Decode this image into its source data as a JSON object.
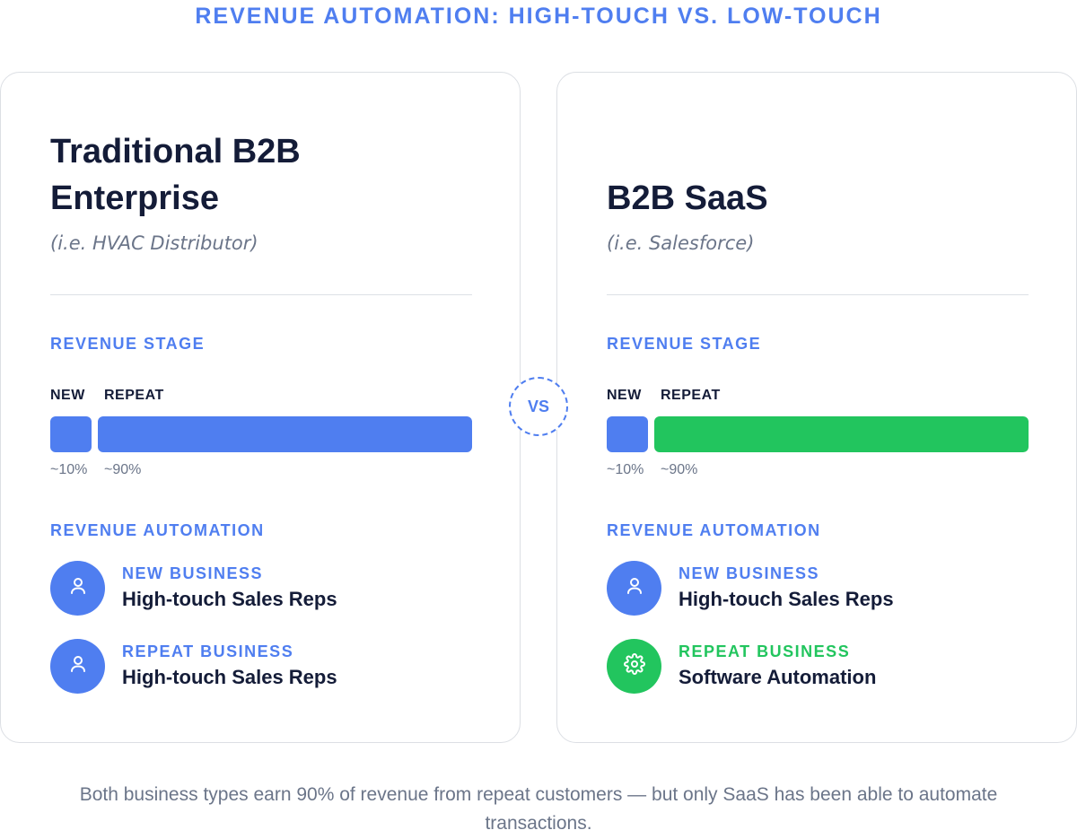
{
  "title": "REVENUE AUTOMATION: HIGH-TOUCH VS. LOW-TOUCH",
  "vs_label": "VS",
  "colors": {
    "accent_blue": "#4f7ef0",
    "accent_green": "#22c55e",
    "dark_text": "#141c38",
    "muted_text": "#6b7589"
  },
  "left": {
    "title": "Traditional B2B Enterprise",
    "subtitle": "(i.e. HVAC Distributor)",
    "stage_label": "REVENUE STAGE",
    "bar": {
      "new_label": "NEW",
      "repeat_label": "REPEAT",
      "new_pct": "~10%",
      "repeat_pct": "~90%",
      "new_color": "#4f7ef0",
      "repeat_color": "#4f7ef0"
    },
    "automation_label": "REVENUE AUTOMATION",
    "automation": [
      {
        "kicker": "NEW BUSINESS",
        "value": "High-touch Sales Reps",
        "icon": "person-icon",
        "color": "#4f7ef0"
      },
      {
        "kicker": "REPEAT BUSINESS",
        "value": "High-touch Sales Reps",
        "icon": "person-icon",
        "color": "#4f7ef0"
      }
    ]
  },
  "right": {
    "title": "B2B SaaS",
    "subtitle": "(i.e. Salesforce)",
    "stage_label": "REVENUE STAGE",
    "bar": {
      "new_label": "NEW",
      "repeat_label": "REPEAT",
      "new_pct": "~10%",
      "repeat_pct": "~90%",
      "new_color": "#4f7ef0",
      "repeat_color": "#22c55e"
    },
    "automation_label": "REVENUE AUTOMATION",
    "automation": [
      {
        "kicker": "NEW BUSINESS",
        "value": "High-touch Sales Reps",
        "icon": "person-icon",
        "color": "#4f7ef0"
      },
      {
        "kicker": "REPEAT BUSINESS",
        "value": "Software Automation",
        "icon": "gear-icon",
        "color": "#22c55e"
      }
    ]
  },
  "caption": "Both business types earn 90% of revenue from repeat customers — but only SaaS has been able to automate transactions."
}
